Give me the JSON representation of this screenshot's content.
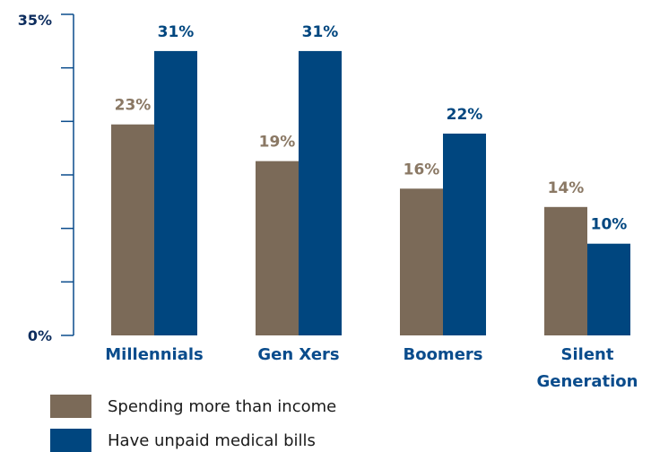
{
  "chart_data": {
    "type": "bar",
    "categories": [
      [
        "Millennials"
      ],
      [
        "Gen Xers"
      ],
      [
        "Boomers"
      ],
      [
        "Silent",
        "Generation"
      ]
    ],
    "series": [
      {
        "name": "Spending more than income",
        "values": [
          23,
          19,
          16,
          14
        ],
        "labels": [
          "23%",
          "19%",
          "16%",
          "14%"
        ],
        "color": "#7b6a58"
      },
      {
        "name": "Have unpaid medical bills",
        "values": [
          31,
          31,
          22,
          10
        ],
        "labels": [
          "31%",
          "31%",
          "22%",
          "10%"
        ],
        "color": "#00467f"
      }
    ],
    "ylim": [
      0,
      35
    ],
    "ytick_labels": [
      "0%",
      "35%"
    ],
    "axis_color": "#0a4c8c",
    "data_label_colors": {
      "series_0": "#8a7864",
      "series_1": "#00467f"
    },
    "legend_position": "bottom-left"
  }
}
